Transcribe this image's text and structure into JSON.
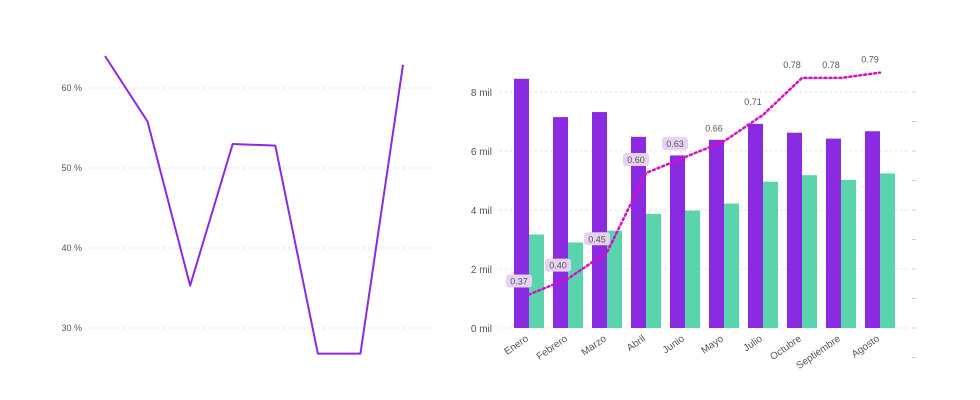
{
  "colors": {
    "line_left": "#8a2be2",
    "bar_series_1": "#8a2be2",
    "bar_series_2": "#5ad4ac",
    "line_series": "#d60fc6",
    "label_box": "#e6d3f3",
    "grid": "#dddddd"
  },
  "chart_data": [
    {
      "type": "line",
      "title": "",
      "xlabel": "",
      "ylabel": "",
      "y_ticks": [
        "30 %",
        "40 %",
        "50 %",
        "60 %"
      ],
      "ylim": [
        0.26,
        0.66
      ],
      "grid": true,
      "series": [
        {
          "values": [
            0.64,
            0.558,
            0.353,
            0.53,
            0.528,
            0.268,
            0.268,
            0.629
          ]
        }
      ]
    },
    {
      "type": "bar",
      "title": "",
      "xlabel": "",
      "ylabel": "",
      "categories": [
        "Enero",
        "Febrero",
        "Marzo",
        "Abril",
        "Junio",
        "Mayo",
        "Julio",
        "Octubre",
        "Septiembre",
        "Agosto"
      ],
      "y_ticks": [
        "0 mil",
        "2 mil",
        "4 mil",
        "6 mil",
        "8 mil"
      ],
      "ylim": [
        0,
        9000
      ],
      "grid": true,
      "series": [
        {
          "values": [
            8450,
            7150,
            7320,
            6480,
            5850,
            6380,
            6920,
            6620,
            6420,
            6670
          ]
        },
        {
          "values": [
            3170,
            2900,
            3300,
            3870,
            3980,
            4220,
            4960,
            5180,
            5020,
            5240
          ]
        }
      ],
      "line_series": {
        "style": "dotted",
        "secondary_axis": true,
        "values": [
          0.37,
          0.4,
          0.45,
          0.6,
          0.63,
          0.66,
          0.71,
          0.78,
          0.78,
          0.79
        ],
        "labels": [
          "0.37",
          "0.40",
          "0.45",
          "0.60",
          "0.63",
          "0.66",
          "0.71",
          "0.78",
          "0.78",
          "0.79"
        ]
      }
    }
  ]
}
